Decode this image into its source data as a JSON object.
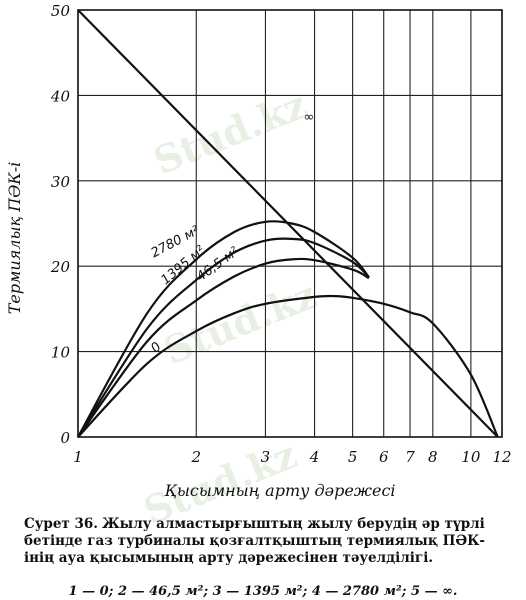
{
  "chart_data": {
    "type": "line",
    "xlabel": "Қысымның арту дәрежесі",
    "ylabel": "Термиялық ПӘК-і",
    "xlim": [
      1,
      12
    ],
    "ylim": [
      0,
      50
    ],
    "x_scale": "log",
    "grid": true,
    "xticks": [
      1,
      2,
      3,
      4,
      5,
      6,
      7,
      8,
      10,
      12
    ],
    "xtick_labels": [
      "1",
      "2",
      "3",
      "4",
      "5",
      "6",
      "7",
      "8",
      "10",
      "12"
    ],
    "yticks": [
      0,
      10,
      20,
      30,
      40,
      50
    ],
    "ytick_labels": [
      "0",
      "10",
      "20",
      "30",
      "40",
      "50"
    ],
    "series": [
      {
        "name": "0",
        "x": [
          1,
          1.5,
          2,
          2.5,
          3,
          4,
          4.5,
          5,
          6,
          7,
          8,
          10,
          11.7
        ],
        "y": [
          0,
          8.6,
          12.4,
          14.5,
          15.6,
          16.4,
          16.5,
          16.3,
          15.6,
          14.6,
          13.3,
          7.3,
          0
        ]
      },
      {
        "name": "46,5 м²",
        "x": [
          1,
          1.5,
          2,
          2.5,
          3,
          3.5,
          4,
          5,
          5.5
        ],
        "y": [
          0,
          11.2,
          16.0,
          18.8,
          20.3,
          20.8,
          20.7,
          19.6,
          18.6
        ]
      },
      {
        "name": "1395 м²",
        "x": [
          1,
          1.5,
          2,
          2.5,
          3,
          3.5,
          4,
          5,
          5.5
        ],
        "y": [
          0,
          12.7,
          18.4,
          21.6,
          23.0,
          23.2,
          22.7,
          20.5,
          18.7
        ]
      },
      {
        "name": "2780 м²",
        "x": [
          1,
          1.5,
          2,
          2.5,
          3,
          3.5,
          4,
          5,
          5.5
        ],
        "y": [
          0,
          14.5,
          20.8,
          24.0,
          25.2,
          25.0,
          24.0,
          21.0,
          18.7
        ]
      },
      {
        "name": "∞",
        "x": [
          1,
          11.7
        ],
        "y": [
          50,
          0
        ]
      }
    ]
  },
  "caption": {
    "prefix": "Сурет 36.",
    "text": "Жылу алмастырғыштың жылу берудің әр түрлі бетінде газ турбиналы қозғалтқыштың термиялық ПӘК-інің ауа қысымының арту дәрежесінен тәуелділігі.",
    "legend": "1 — 0;  2 — 46,5 м²;  3 — 1395 м²;  4 — 2780 м²;  5 — ∞."
  },
  "watermark": "Stud.kz"
}
